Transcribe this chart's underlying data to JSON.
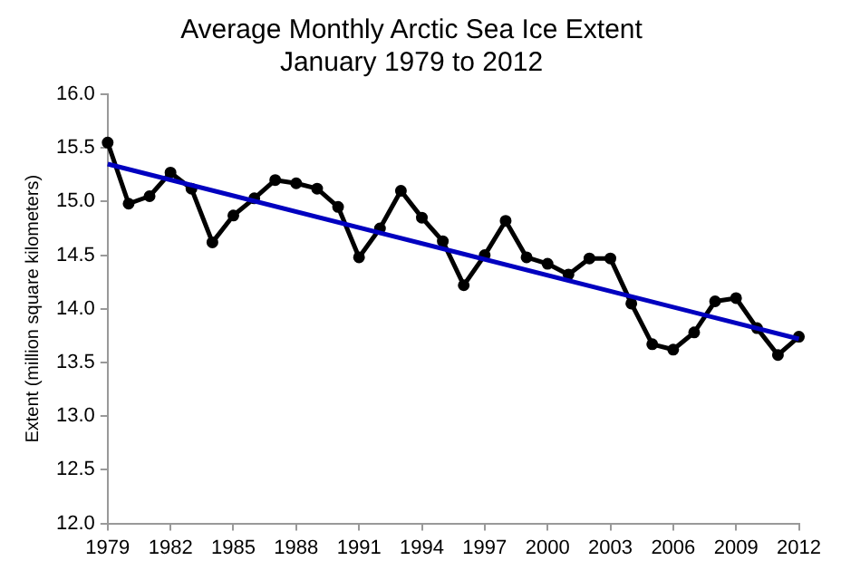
{
  "chart_data": {
    "type": "line",
    "title": "Average Monthly Arctic Sea Ice Extent",
    "subtitle": "January 1979 to 2012",
    "ylabel": "Extent (million square kilometers)",
    "x": [
      1979,
      1980,
      1981,
      1982,
      1983,
      1984,
      1985,
      1986,
      1987,
      1988,
      1989,
      1990,
      1991,
      1992,
      1993,
      1994,
      1995,
      1996,
      1997,
      1998,
      1999,
      2000,
      2001,
      2002,
      2003,
      2004,
      2005,
      2006,
      2007,
      2008,
      2009,
      2010,
      2011,
      2012
    ],
    "series": [
      {
        "type": "line",
        "color": "#000000",
        "marker": "circle",
        "values": [
          15.55,
          14.98,
          15.05,
          15.27,
          15.12,
          14.62,
          14.87,
          15.03,
          15.2,
          15.17,
          15.12,
          14.95,
          14.48,
          14.75,
          15.1,
          14.85,
          14.63,
          14.22,
          14.5,
          14.82,
          14.48,
          14.42,
          14.32,
          14.47,
          14.47,
          14.05,
          13.67,
          13.62,
          13.78,
          14.07,
          14.1,
          13.82,
          13.57,
          13.74
        ]
      },
      {
        "type": "line",
        "color": "#0000c0",
        "marker": "none",
        "x": [
          1979,
          2012
        ],
        "values": [
          15.35,
          13.72
        ]
      }
    ],
    "xlim": [
      1979,
      2012
    ],
    "xticks": [
      1979,
      1982,
      1985,
      1988,
      1991,
      1994,
      1997,
      2000,
      2003,
      2006,
      2009,
      2012
    ],
    "ylim": [
      12,
      16
    ],
    "yticks": [
      {
        "value": 12,
        "label": "12.0"
      },
      {
        "value": 12.5,
        "label": "12.5"
      },
      {
        "value": 13,
        "label": "13.0"
      },
      {
        "value": 13.5,
        "label": "13.5"
      },
      {
        "value": 14,
        "label": "14.0"
      },
      {
        "value": 14.5,
        "label": "14.5"
      },
      {
        "value": 15,
        "label": "15.0"
      },
      {
        "value": 15.5,
        "label": "15.5"
      },
      {
        "value": 16,
        "label": "16.0"
      }
    ],
    "grid": false,
    "legend": false
  }
}
